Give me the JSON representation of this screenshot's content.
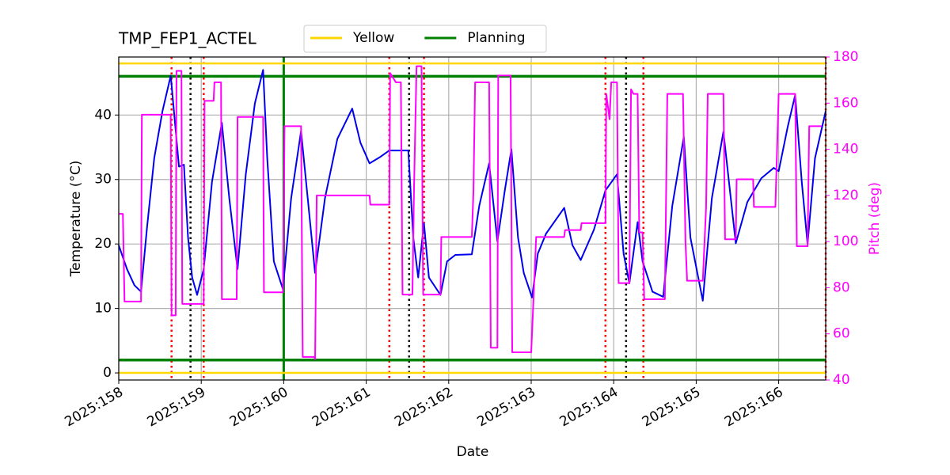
{
  "chart_data": {
    "type": "line",
    "title": "TMP_FEP1_ACTEL",
    "xlabel": "Date",
    "ylabel": "Temperature (°C)",
    "y2label": "Pitch (deg)",
    "y2color": "#ff00ff",
    "grid": true,
    "legend": "top-center",
    "xlim": [
      158,
      166.57
    ],
    "xticks": [
      {
        "value": 158,
        "label": "2025:158"
      },
      {
        "value": 159,
        "label": "2025:159"
      },
      {
        "value": 160,
        "label": "2025:160"
      },
      {
        "value": 161,
        "label": "2025:161"
      },
      {
        "value": 162,
        "label": "2025:162"
      },
      {
        "value": 163,
        "label": "2025:163"
      },
      {
        "value": 164,
        "label": "2025:164"
      },
      {
        "value": 165,
        "label": "2025:165"
      },
      {
        "value": 166,
        "label": "2025:166"
      }
    ],
    "ylim": [
      -1.1,
      49
    ],
    "yticks": [
      0,
      10,
      20,
      30,
      40
    ],
    "y2lim": [
      40,
      180
    ],
    "y2ticks": [
      40,
      60,
      80,
      100,
      120,
      140,
      160,
      180
    ],
    "reference_lines": [
      {
        "name": "Yellow",
        "color": "#ffd700",
        "values": [
          48,
          0
        ]
      },
      {
        "name": "Planning",
        "color": "#008000",
        "values": [
          46,
          2
        ]
      }
    ],
    "vlines": [
      {
        "color": "#008000",
        "style": "solid",
        "x": [
          160
        ]
      },
      {
        "color": "#ff0000",
        "style": "dotted",
        "x": [
          158.64,
          159.03,
          161.28,
          161.7,
          163.9,
          164.36,
          166.57
        ]
      },
      {
        "color": "#000000",
        "style": "dotted",
        "x": [
          158.87,
          161.52,
          164.15
        ]
      }
    ],
    "series": [
      {
        "color": "#0000ee",
        "axis": "y",
        "x": [
          158.0,
          158.1,
          158.19,
          158.27,
          158.34,
          158.43,
          158.53,
          158.63,
          158.73,
          158.79,
          158.84,
          158.89,
          158.95,
          159.03,
          159.13,
          159.25,
          159.34,
          159.44,
          159.54,
          159.65,
          159.75,
          159.8,
          159.88,
          159.99,
          160.09,
          160.21,
          160.3,
          160.38,
          160.5,
          160.65,
          160.83,
          160.93,
          161.04,
          161.17,
          161.28,
          161.51,
          161.57,
          161.63,
          161.7,
          161.76,
          161.9,
          161.98,
          162.08,
          162.28,
          162.37,
          162.49,
          162.59,
          162.68,
          162.76,
          162.84,
          162.91,
          163.01,
          163.08,
          163.18,
          163.4,
          163.5,
          163.6,
          163.76,
          163.9,
          164.04,
          164.12,
          164.19,
          164.29,
          164.35,
          164.47,
          164.6,
          164.71,
          164.85,
          164.93,
          165.08,
          165.19,
          165.33,
          165.48,
          165.62,
          165.79,
          165.94,
          166.0,
          166.11,
          166.2,
          166.28,
          166.35,
          166.44,
          166.57
        ],
        "values": [
          19.8,
          16.1,
          13.6,
          12.6,
          22.2,
          33.3,
          40.6,
          46.1,
          32.0,
          32.3,
          21.0,
          14.8,
          12.1,
          16.1,
          29.6,
          38.8,
          27.1,
          16.1,
          30.8,
          41.8,
          47.0,
          33.3,
          17.3,
          13.0,
          27.1,
          37.5,
          25.9,
          15.5,
          27.1,
          36.3,
          41.0,
          35.7,
          32.5,
          33.5,
          34.5,
          34.5,
          21.0,
          14.8,
          23.2,
          14.8,
          12.1,
          17.3,
          18.3,
          18.4,
          25.9,
          32.5,
          20.4,
          28.3,
          34.7,
          21.0,
          15.5,
          11.7,
          18.5,
          21.6,
          25.6,
          19.8,
          17.5,
          22.2,
          28.3,
          30.8,
          18.5,
          13.9,
          23.4,
          17.3,
          12.6,
          11.8,
          25.9,
          36.6,
          21.0,
          11.2,
          27.1,
          37.4,
          20.1,
          26.5,
          30.2,
          31.8,
          31.3,
          38.2,
          43.1,
          29.6,
          20.0,
          33.3,
          40.6
        ]
      },
      {
        "color": "#ff00ff",
        "axis": "y2",
        "x": [
          158.0,
          158.05,
          158.07,
          158.27,
          158.28,
          158.63,
          158.64,
          158.69,
          158.7,
          158.76,
          158.77,
          159.03,
          159.04,
          159.15,
          159.16,
          159.24,
          159.25,
          159.43,
          159.44,
          159.75,
          159.76,
          159.99,
          160.01,
          160.21,
          160.23,
          160.37,
          160.38,
          160.4,
          161.04,
          161.05,
          161.28,
          161.29,
          161.36,
          161.42,
          161.44,
          161.56,
          161.58,
          161.61,
          161.67,
          161.69,
          161.9,
          161.91,
          162.28,
          162.3,
          162.32,
          162.49,
          162.51,
          162.59,
          162.6,
          162.75,
          162.77,
          163.0,
          163.06,
          163.4,
          163.41,
          163.6,
          163.61,
          163.9,
          163.91,
          163.95,
          163.97,
          164.04,
          164.06,
          164.19,
          164.21,
          164.24,
          164.29,
          164.31,
          164.35,
          164.37,
          164.62,
          164.65,
          164.84,
          164.87,
          164.89,
          165.08,
          165.12,
          165.14,
          165.33,
          165.35,
          165.48,
          165.49,
          165.69,
          165.7,
          165.96,
          166.0,
          166.2,
          166.22,
          166.35,
          166.37,
          166.52
        ],
        "values": [
          112,
          112,
          74,
          74,
          155,
          155,
          68,
          68,
          174,
          174,
          73,
          73,
          161,
          161,
          169,
          169,
          75,
          75,
          154,
          154,
          78,
          78,
          150,
          150,
          50,
          50,
          49,
          120,
          120,
          116,
          116,
          173,
          169,
          169,
          77,
          77,
          124,
          176,
          176,
          77,
          77,
          102,
          102,
          122,
          169,
          169,
          54,
          54,
          172,
          172,
          52,
          52,
          102,
          102,
          105,
          105,
          108,
          108,
          164,
          153,
          169,
          169,
          82,
          82,
          166,
          164,
          164,
          104,
          104,
          75,
          75,
          164,
          164,
          100,
          83,
          83,
          115,
          164,
          164,
          101,
          101,
          127,
          127,
          115,
          115,
          164,
          164,
          98,
          98,
          150,
          150
        ]
      }
    ]
  }
}
